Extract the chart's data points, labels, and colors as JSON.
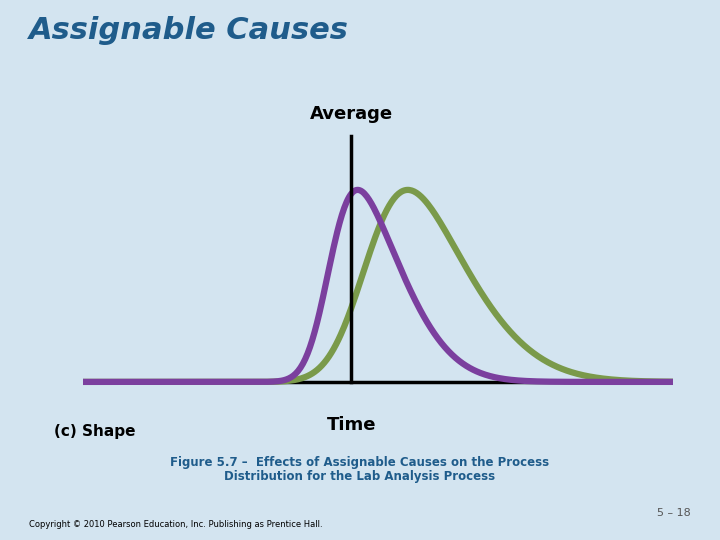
{
  "title": "Assignable Causes",
  "title_color": "#1F5C8B",
  "title_fontsize": 22,
  "title_fontstyle": "italic",
  "title_fontweight": "bold",
  "bg_outer": "#D3E4F0",
  "bg_inner": "#FFFFFF",
  "average_label": "Average",
  "time_label": "Time",
  "shape_label": "(c) Shape",
  "figure_caption_line1": "Figure 5.7 –  Effects of Assignable Causes on the Process",
  "figure_caption_line2": "Distribution for the Lab Analysis Process",
  "caption_color": "#1F5C8B",
  "copyright_text": "Copyright © 2010 Pearson Education, Inc. Publishing as Prentice Hall.",
  "page_number": "5 – 18",
  "purple_color": "#7B3F9E",
  "green_color": "#7A9A4A",
  "line_width": 4.5,
  "purple_mean": -0.4,
  "purple_std": 1.1,
  "purple_skew": 3.0,
  "green_mean": 0.3,
  "green_std": 1.5,
  "green_skew": 2.5,
  "x_min": -5,
  "x_max": 6
}
